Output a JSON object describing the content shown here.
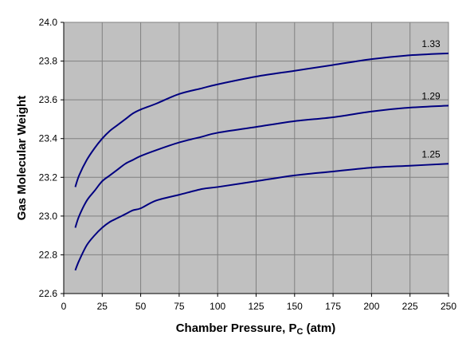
{
  "chart_data": {
    "type": "line",
    "xlabel": "Chamber Pressure, P",
    "xlabel_sub": "C",
    "xlabel_unit": " (atm)",
    "ylabel": "Gas Molecular Weight",
    "xlim": [
      0,
      250
    ],
    "ylim": [
      22.6,
      24.0
    ],
    "x_ticks": [
      "0",
      "25",
      "50",
      "75",
      "100",
      "125",
      "150",
      "175",
      "200",
      "225",
      "250"
    ],
    "y_ticks": [
      "22.6",
      "22.8",
      "23.0",
      "23.2",
      "23.4",
      "23.6",
      "23.8",
      "24.0"
    ],
    "grid": true,
    "colors": {
      "plot_bg": "#c0c0c0",
      "line": "#000080",
      "grid": "#808080"
    },
    "series": [
      {
        "name": "1.33",
        "x": [
          7.5,
          10,
          15,
          20,
          25,
          30,
          35,
          40,
          45,
          50,
          60,
          75,
          90,
          100,
          125,
          150,
          175,
          200,
          225,
          250
        ],
        "values": [
          23.15,
          23.21,
          23.29,
          23.35,
          23.4,
          23.44,
          23.47,
          23.5,
          23.53,
          23.55,
          23.58,
          23.63,
          23.66,
          23.68,
          23.72,
          23.75,
          23.78,
          23.81,
          23.83,
          23.84
        ]
      },
      {
        "name": "1.29",
        "x": [
          7.5,
          10,
          15,
          20,
          25,
          30,
          35,
          40,
          45,
          50,
          60,
          75,
          90,
          100,
          125,
          150,
          175,
          200,
          225,
          250
        ],
        "values": [
          22.94,
          23.0,
          23.08,
          23.13,
          23.18,
          23.21,
          23.24,
          23.27,
          23.29,
          23.31,
          23.34,
          23.38,
          23.41,
          23.43,
          23.46,
          23.49,
          23.51,
          23.54,
          23.56,
          23.57
        ]
      },
      {
        "name": "1.25",
        "x": [
          7.5,
          10,
          15,
          20,
          25,
          30,
          35,
          40,
          45,
          50,
          60,
          75,
          90,
          100,
          125,
          150,
          175,
          200,
          225,
          250
        ],
        "values": [
          22.72,
          22.77,
          22.85,
          22.9,
          22.94,
          22.97,
          22.99,
          23.01,
          23.03,
          23.04,
          23.08,
          23.11,
          23.14,
          23.15,
          23.18,
          23.21,
          23.23,
          23.25,
          23.26,
          23.27
        ]
      }
    ]
  }
}
